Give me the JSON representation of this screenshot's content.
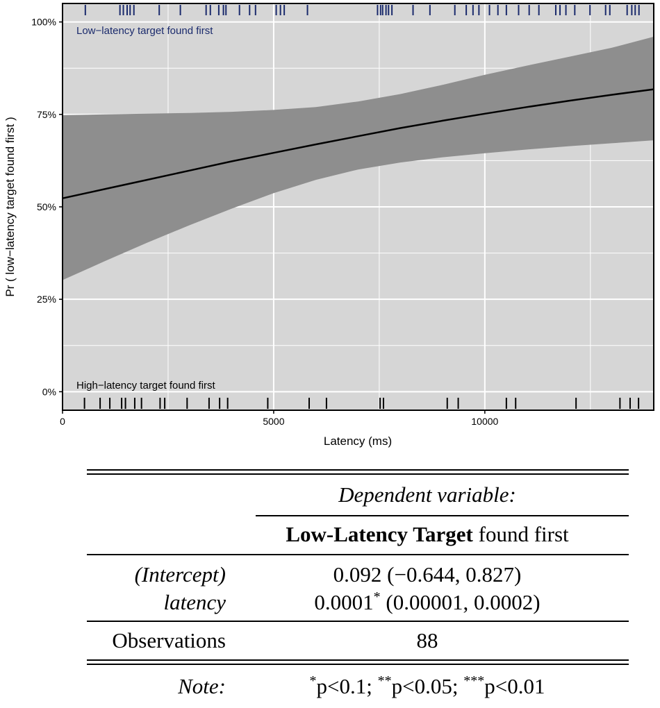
{
  "chart_data": {
    "type": "line",
    "title": "",
    "xlabel": "Latency (ms)",
    "ylabel": "Pr ( low−latency target found first )",
    "xlim": [
      0,
      14000
    ],
    "ylim": [
      -0.05,
      1.05
    ],
    "x_ticks": [
      0,
      5000,
      10000
    ],
    "x_tick_labels": [
      "0",
      "5000",
      "10000"
    ],
    "y_ticks": [
      0,
      0.25,
      0.5,
      0.75,
      1.0
    ],
    "y_tick_labels": [
      "0%",
      "25%",
      "50%",
      "75%",
      "100%"
    ],
    "grid": true,
    "background_color": "#d6d6d6",
    "ribbon_color": "#8e8e8e",
    "line_color": "#000000",
    "series": [
      {
        "kind": "fit",
        "x": [
          0,
          1000,
          2000,
          3000,
          4000,
          5000,
          6000,
          7000,
          8000,
          9000,
          10000,
          11000,
          12000,
          13000,
          14000
        ],
        "y": [
          0.523,
          0.548,
          0.573,
          0.598,
          0.623,
          0.646,
          0.669,
          0.691,
          0.713,
          0.733,
          0.752,
          0.77,
          0.787,
          0.803,
          0.818
        ],
        "lower": [
          0.302,
          0.353,
          0.403,
          0.45,
          0.495,
          0.537,
          0.573,
          0.601,
          0.62,
          0.634,
          0.645,
          0.655,
          0.664,
          0.672,
          0.68
        ],
        "upper": [
          0.748,
          0.75,
          0.752,
          0.754,
          0.757,
          0.762,
          0.77,
          0.785,
          0.805,
          0.83,
          0.857,
          0.882,
          0.906,
          0.93,
          0.96
        ]
      }
    ],
    "rug_top": {
      "label": "Low−latency target found first",
      "color": "#1a2a6c",
      "x": [
        540,
        1360,
        1440,
        1530,
        1600,
        1690,
        2290,
        2790,
        3400,
        3500,
        3700,
        3810,
        3870,
        4190,
        4430,
        4570,
        5060,
        5160,
        5250,
        5800,
        7460,
        7530,
        7580,
        7660,
        7720,
        7800,
        8300,
        8700,
        9290,
        9560,
        9720,
        9860,
        10110,
        10310,
        10510,
        10800,
        11050,
        11280,
        11680,
        11780,
        11920,
        12130,
        12490,
        12860,
        12960,
        13370,
        13480,
        13560,
        13650
      ]
    },
    "rug_bottom": {
      "label": "High−latency target found first",
      "color": "#000000",
      "x": [
        520,
        890,
        1120,
        1400,
        1490,
        1710,
        1870,
        2310,
        2420,
        2950,
        3470,
        3720,
        3910,
        4860,
        5840,
        6250,
        7520,
        7600,
        9110,
        9370,
        10510,
        10730,
        12160,
        13200,
        13440,
        13640
      ]
    }
  },
  "table": {
    "dv_header": "Dependent variable:",
    "dv_name_bold": "Low-Latency Target",
    "dv_name_rest": " found first",
    "rows": [
      {
        "label": "(Intercept)",
        "value": "0.092 (−0.644, 0.827)"
      },
      {
        "label": "latency",
        "value_main": "0.0001",
        "value_sup": "*",
        "value_rest": " (0.00001, 0.0002)"
      }
    ],
    "observations_label": "Observations",
    "observations_value": "88",
    "note_label": "Note:",
    "note_parts": [
      {
        "sup": "*",
        "text": "p<0.1; "
      },
      {
        "sup": "**",
        "text": "p<0.05; "
      },
      {
        "sup": "***",
        "text": "p<0.01"
      }
    ]
  }
}
